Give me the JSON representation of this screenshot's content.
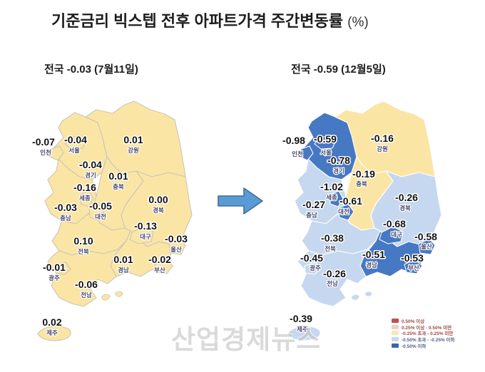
{
  "title": {
    "main": "기준금리 빅스텝 전후 아파트가격 주간변동률",
    "unit": "(%)"
  },
  "watermark": "산업경제뉴스",
  "colors": {
    "yellow": "#fbe5a4",
    "light": "#c6d8ef",
    "dark": "#4678c4",
    "left_border": "#cbc6ba",
    "right_border": "#ffffff",
    "arrow_fill": "#5b9bd5",
    "arrow_stroke": "#3f6d99"
  },
  "maps": {
    "left": {
      "subtitle": "전국 -0.03 (7월11일)",
      "national_value": "-0.03",
      "date": "7월11일",
      "islands_category": "yellow",
      "regions": [
        {
          "id": "gyeonggi",
          "name": "경기",
          "value": "-0.04",
          "category": "yellow"
        },
        {
          "id": "gangwon",
          "name": "강원",
          "value": "0.01",
          "category": "yellow"
        },
        {
          "id": "chungbuk",
          "name": "충북",
          "value": "0.01",
          "category": "yellow"
        },
        {
          "id": "chungnam",
          "name": "충남",
          "value": "-0.03",
          "category": "yellow"
        },
        {
          "id": "gyeongbuk",
          "name": "경북",
          "value": "0.00",
          "category": "yellow"
        },
        {
          "id": "jeonbuk",
          "name": "전북",
          "value": "0.10",
          "category": "yellow"
        },
        {
          "id": "gyeongnam",
          "name": "경남",
          "value": "0.01",
          "category": "yellow"
        },
        {
          "id": "jeonnam",
          "name": "전남",
          "value": "-0.06",
          "category": "yellow"
        },
        {
          "id": "incheon",
          "name": "인천",
          "value": "-0.07",
          "category": "yellow"
        },
        {
          "id": "seoul",
          "name": "서울",
          "value": "-0.04",
          "category": "yellow"
        },
        {
          "id": "sejong",
          "name": "세종",
          "value": "-0.16",
          "category": "yellow"
        },
        {
          "id": "daejeon",
          "name": "대전",
          "value": "-0.05",
          "category": "yellow"
        },
        {
          "id": "daegu",
          "name": "대구",
          "value": "-0.13",
          "category": "yellow"
        },
        {
          "id": "ulsan",
          "name": "울산",
          "value": "-0.03",
          "category": "yellow"
        },
        {
          "id": "busan",
          "name": "부산",
          "value": "-0.02",
          "category": "yellow"
        },
        {
          "id": "gwangju",
          "name": "광주",
          "value": "-0.01",
          "category": "yellow"
        },
        {
          "id": "jeju",
          "name": "제주",
          "value": "0.02",
          "category": "yellow"
        }
      ]
    },
    "right": {
      "subtitle": "전국 -0.59 (12월5일)",
      "national_value": "-0.59",
      "date": "12월5일",
      "islands_category": "light",
      "regions": [
        {
          "id": "gyeonggi",
          "name": "경기",
          "value": "-0.78",
          "category": "dark"
        },
        {
          "id": "gangwon",
          "name": "강원",
          "value": "-0.16",
          "category": "yellow"
        },
        {
          "id": "chungbuk",
          "name": "충북",
          "value": "-0.19",
          "category": "yellow"
        },
        {
          "id": "chungnam",
          "name": "충남",
          "value": "-0.27",
          "category": "light"
        },
        {
          "id": "gyeongbuk",
          "name": "경북",
          "value": "-0.26",
          "category": "light"
        },
        {
          "id": "jeonbuk",
          "name": "전북",
          "value": "-0.38",
          "category": "light"
        },
        {
          "id": "gyeongnam",
          "name": "경남",
          "value": "-0.51",
          "category": "dark"
        },
        {
          "id": "jeonnam",
          "name": "전남",
          "value": "-0.26",
          "category": "light"
        },
        {
          "id": "incheon",
          "name": "인천",
          "value": "-0.98",
          "category": "dark"
        },
        {
          "id": "seoul",
          "name": "서울",
          "value": "-0.59",
          "category": "dark"
        },
        {
          "id": "sejong",
          "name": "세종",
          "value": "-1.02",
          "category": "dark"
        },
        {
          "id": "daejeon",
          "name": "대전",
          "value": "-0.61",
          "category": "dark"
        },
        {
          "id": "daegu",
          "name": "대구",
          "value": "-0.68",
          "category": "dark"
        },
        {
          "id": "ulsan",
          "name": "울산",
          "value": "-0.58",
          "category": "dark"
        },
        {
          "id": "busan",
          "name": "부산",
          "value": "-0.53",
          "category": "dark"
        },
        {
          "id": "gwangju",
          "name": "광주",
          "value": "-0.45",
          "category": "light"
        },
        {
          "id": "jeju",
          "name": "제주",
          "value": "-0.39",
          "category": "light"
        }
      ]
    }
  },
  "legend": {
    "items": [
      {
        "label": "0.50% 이상",
        "swatch": "#c0504d",
        "text_color": "#9e4b45"
      },
      {
        "label": "0.25% 이상 - 0.50% 미만",
        "swatch": "#f2cbca",
        "text_color": "#9e4b45"
      },
      {
        "label": "-0.25% 초과 - 0.25% 미만",
        "swatch": "#f7e8ae",
        "text_color": "#9e4b45"
      },
      {
        "label": "-0.50% 초과 - -0.25% 이하",
        "swatch": "#c5d9f1",
        "text_color": "#50608a"
      },
      {
        "label": "-0.50% 이하",
        "swatch": "#3c67a5",
        "text_color": "#50608a"
      }
    ]
  },
  "chart_data": {
    "type": "heatmap",
    "subtype": "choropleth-korea-comparison",
    "title": "기준금리 빅스텝 전후 아파트가격 주간변동률 (%)",
    "categories": [
      "전국",
      "서울",
      "인천",
      "경기",
      "강원",
      "충북",
      "세종",
      "충남",
      "대전",
      "경북",
      "대구",
      "전북",
      "울산",
      "경남",
      "부산",
      "광주",
      "전남",
      "제주"
    ],
    "series": [
      {
        "name": "7월11일",
        "values": [
          -0.03,
          -0.04,
          -0.07,
          -0.04,
          0.01,
          0.01,
          -0.16,
          -0.03,
          -0.05,
          0.0,
          -0.13,
          0.1,
          -0.03,
          0.01,
          -0.02,
          -0.01,
          -0.06,
          0.02
        ]
      },
      {
        "name": "12월5일",
        "values": [
          -0.59,
          -0.59,
          -0.98,
          -0.78,
          -0.16,
          -0.19,
          -1.02,
          -0.27,
          -0.61,
          -0.26,
          -0.68,
          -0.38,
          -0.58,
          -0.51,
          -0.53,
          -0.45,
          -0.26,
          -0.39
        ]
      }
    ],
    "legend_position": "bottom-right",
    "legend_bins": [
      "0.50% 이상",
      "0.25% 이상 - 0.50% 미만",
      "-0.25% 초과 - 0.25% 미만",
      "-0.50% 초과 - -0.25% 이하",
      "-0.50% 이하"
    ]
  }
}
